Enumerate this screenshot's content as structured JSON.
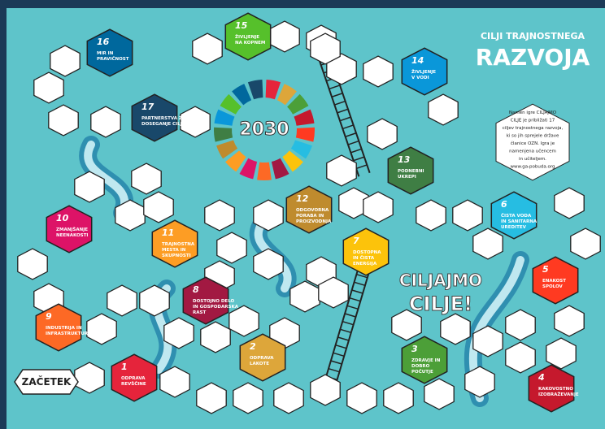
{
  "header": {
    "title_top": "CILJI TRAJNOSTNEGA",
    "title_main": "RAZVOJA"
  },
  "wheel_label": "2030",
  "slogan": [
    "CILJAJMO",
    "CILJE!"
  ],
  "start": "ZAČETEK",
  "info": [
    "Namen igre CILJAJMO",
    "CILJE je približati 17",
    "ciljev trajnostnega razvoja,",
    "ki so jih sprejele države",
    "članice OZN. Igra je",
    "namenjena učencem",
    "in učiteljem.",
    "www.ga-pobuda.org"
  ],
  "goals": [
    {
      "number": "1",
      "label": [
        "ODPRAVA",
        "REVŠČINE"
      ],
      "color": "#e5243b"
    },
    {
      "number": "2",
      "label": [
        "ODPRAVA",
        "LAKOTE"
      ],
      "color": "#dda63a"
    },
    {
      "number": "3",
      "label": [
        "ZDRAVJE IN",
        "DOBRO",
        "POČUTJE"
      ],
      "color": "#4c9f38"
    },
    {
      "number": "4",
      "label": [
        "KAKOVOSTNO",
        "IZOBRAŽEVANJE"
      ],
      "color": "#c5192d"
    },
    {
      "number": "5",
      "label": [
        "ENAKOST",
        "SPOLOV"
      ],
      "color": "#ff3a21"
    },
    {
      "number": "6",
      "label": [
        "ČISTA VODA",
        "IN SANITARNA",
        "UREDITEV"
      ],
      "color": "#26bde2"
    },
    {
      "number": "7",
      "label": [
        "DOSTOPNA",
        "IN ČISTA",
        "ENERGIJA"
      ],
      "color": "#fcc30b"
    },
    {
      "number": "8",
      "label": [
        "DOSTOJNO DELO",
        "IN GOSPODARSKA",
        "RAST"
      ],
      "color": "#a21942"
    },
    {
      "number": "9",
      "label": [
        "INDUSTRIJA IN",
        "INFRASTRUKTURA"
      ],
      "color": "#fd6925"
    },
    {
      "number": "10",
      "label": [
        "ZMANJŠANJE",
        "NEENAKOSTI"
      ],
      "color": "#dd1367"
    },
    {
      "number": "11",
      "label": [
        "TRAJNOSTNA",
        "MESTA IN",
        "SKUPNOSTI"
      ],
      "color": "#fd9d24"
    },
    {
      "number": "12",
      "label": [
        "ODGOVORNA",
        "PORABA IN",
        "PROIZVODNJA"
      ],
      "color": "#bf8b2e"
    },
    {
      "number": "13",
      "label": [
        "PODNEBNI",
        "UKREPI"
      ],
      "color": "#3f7e44"
    },
    {
      "number": "14",
      "label": [
        "ŽIVLJENJE",
        "V VODI"
      ],
      "color": "#0a97d9"
    },
    {
      "number": "15",
      "label": [
        "ŽIVLJENJE",
        "NA KOPNEM"
      ],
      "color": "#56c02b"
    },
    {
      "number": "16",
      "label": [
        "MIR IN",
        "PRAVIČNOST"
      ],
      "color": "#00689d"
    },
    {
      "number": "17",
      "label": [
        "PARTNERSTVA ZA",
        "DOSEGANJE CILJEV"
      ],
      "color": "#19486a"
    }
  ]
}
